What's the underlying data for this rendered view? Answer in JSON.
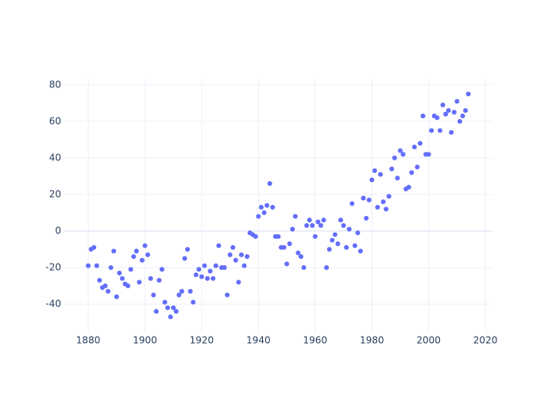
{
  "chart_data": {
    "type": "scatter",
    "x": [
      1880,
      1881,
      1882,
      1883,
      1884,
      1885,
      1886,
      1887,
      1888,
      1889,
      1890,
      1891,
      1892,
      1893,
      1894,
      1895,
      1896,
      1897,
      1898,
      1899,
      1900,
      1901,
      1902,
      1903,
      1904,
      1905,
      1906,
      1907,
      1908,
      1909,
      1910,
      1911,
      1912,
      1913,
      1914,
      1915,
      1916,
      1917,
      1918,
      1919,
      1920,
      1921,
      1922,
      1923,
      1924,
      1925,
      1926,
      1927,
      1928,
      1929,
      1930,
      1931,
      1932,
      1933,
      1934,
      1935,
      1936,
      1937,
      1938,
      1939,
      1940,
      1941,
      1942,
      1943,
      1944,
      1945,
      1946,
      1947,
      1948,
      1949,
      1950,
      1951,
      1952,
      1953,
      1954,
      1955,
      1956,
      1957,
      1958,
      1959,
      1960,
      1961,
      1962,
      1963,
      1964,
      1965,
      1966,
      1967,
      1968,
      1969,
      1970,
      1971,
      1972,
      1973,
      1974,
      1975,
      1976,
      1977,
      1978,
      1979,
      1980,
      1981,
      1982,
      1983,
      1984,
      1985,
      1986,
      1987,
      1988,
      1989,
      1990,
      1991,
      1992,
      1993,
      1994,
      1995,
      1996,
      1997,
      1998,
      1999,
      2000,
      2001,
      2002,
      2003,
      2004,
      2005,
      2006,
      2007,
      2008,
      2009,
      2010,
      2011,
      2012,
      2013,
      2014
    ],
    "values": [
      -19,
      -10,
      -9,
      -19,
      -27,
      -31,
      -30,
      -33,
      -20,
      -11,
      -36,
      -23,
      -26,
      -29,
      -30,
      -21,
      -14,
      -11,
      -28,
      -16,
      -8,
      -13,
      -26,
      -35,
      -44,
      -27,
      -21,
      -39,
      -42,
      -47,
      -42,
      -44,
      -35,
      -33,
      -15,
      -10,
      -33,
      -39,
      -24,
      -21,
      -25,
      -19,
      -26,
      -22,
      -26,
      -19,
      -8,
      -20,
      -20,
      -35,
      -13,
      -9,
      -16,
      -28,
      -13,
      -19,
      -14,
      -1,
      -2,
      -3,
      8,
      13,
      10,
      14,
      26,
      13,
      -3,
      -3,
      -9,
      -9,
      -18,
      -7,
      1,
      8,
      -12,
      -14,
      -20,
      3,
      6,
      3,
      -3,
      5,
      3,
      6,
      -20,
      -10,
      -5,
      -2,
      -7,
      6,
      3,
      -9,
      1,
      15,
      -8,
      -1,
      -11,
      18,
      7,
      17,
      28,
      33,
      13,
      31,
      16,
      12,
      19,
      34,
      40,
      29,
      44,
      42,
      23,
      24,
      32,
      46,
      35,
      48,
      63,
      42,
      42,
      55,
      63,
      62,
      55,
      69,
      64,
      66,
      54,
      65,
      71,
      60,
      63,
      66,
      75
    ],
    "color": "#636efa",
    "xlim": [
      1871.3,
      2022.5
    ],
    "xticks": [
      1880,
      1900,
      1920,
      1940,
      1960,
      1980,
      2000,
      2020
    ],
    "ylim": [
      -56.1,
      83.0
    ],
    "yticks": [
      -40,
      -20,
      0,
      20,
      40,
      60,
      80
    ],
    "grid": true
  }
}
